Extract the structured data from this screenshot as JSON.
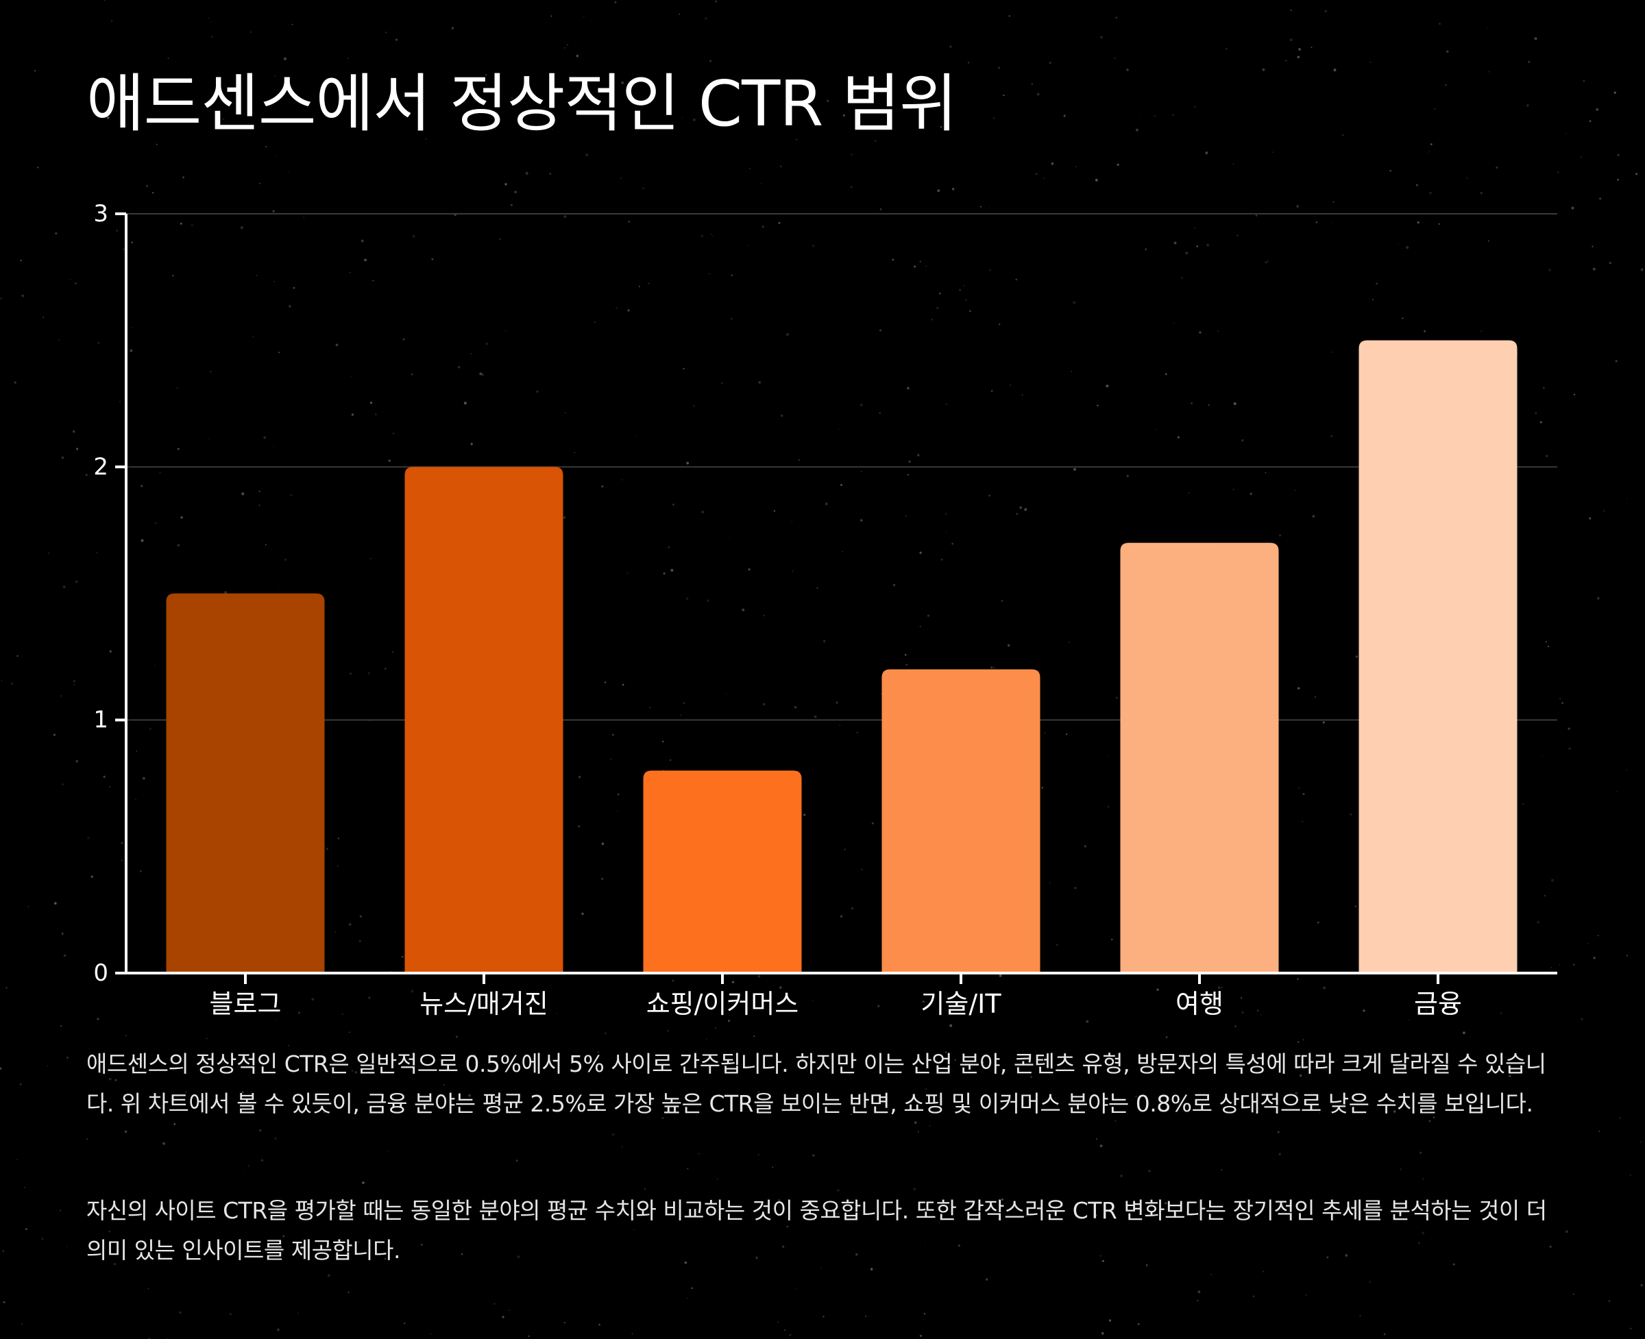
{
  "title": "애드센스에서 정상적인 CTR 범위",
  "chart_data": {
    "type": "bar",
    "categories": [
      "블로그",
      "뉴스/매거진",
      "쇼핑/이커머스",
      "기술/IT",
      "여행",
      "금융"
    ],
    "values": [
      1.5,
      2.0,
      0.8,
      1.2,
      1.7,
      2.5
    ],
    "colors": [
      "#a84300",
      "#d95405",
      "#fc701e",
      "#fd8d4a",
      "#fdb07f",
      "#fecfb0"
    ],
    "ylim": [
      0,
      3
    ],
    "yticks": [
      0,
      1,
      2,
      3
    ],
    "ytick_labels": [
      "0",
      "1",
      "2",
      "3"
    ],
    "xlabel": "",
    "ylabel": "",
    "grid": true,
    "background": "#000000",
    "grid_color": "#3a3a3a",
    "axis_color": "#ffffff"
  },
  "description": [
    "애드센스의 정상적인 CTR은 일반적으로 0.5%에서 5% 사이로 간주됩니다. 하지만 이는 산업 분야, 콘텐츠 유형, 방문자의 특성에 따라 크게 달라질 수 있습니다. 위 차트에서 볼 수 있듯이, 금융 분야는 평균 2.5%로 가장 높은 CTR을 보이는 반면, 쇼핑 및 이커머스 분야는 0.8%로 상대적으로 낮은 수치를 보입니다.",
    "자신의 사이트 CTR을 평가할 때는 동일한 분야의 평균 수치와 비교하는 것이 중요합니다. 또한 갑작스러운 CTR 변화보다는 장기적인 추세를 분석하는 것이 더 의미 있는 인사이트를 제공합니다."
  ]
}
